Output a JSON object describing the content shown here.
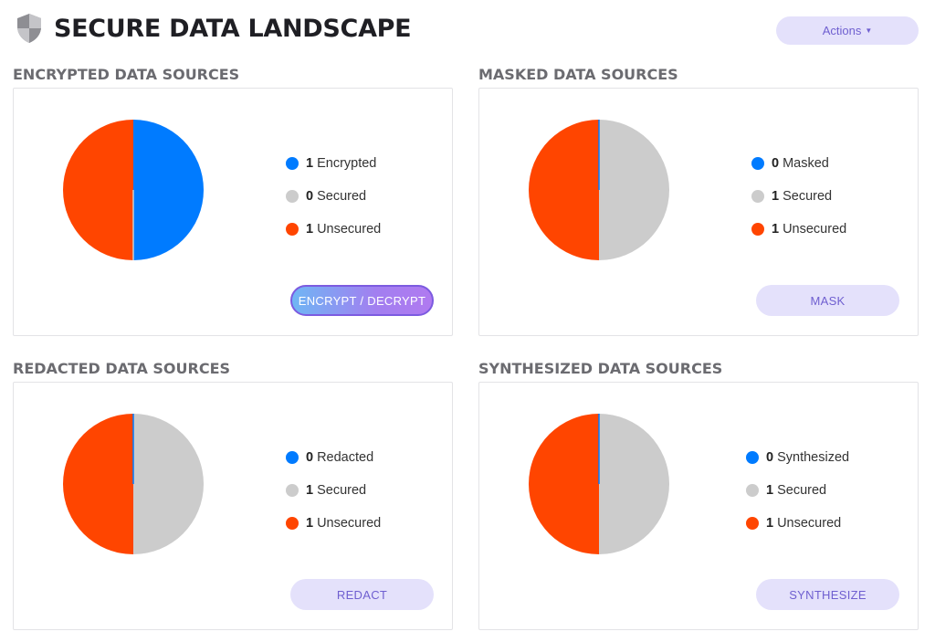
{
  "header": {
    "title": "SECURE DATA LANDSCAPE",
    "actions_label": "Actions",
    "icon": "shield-icon"
  },
  "colors": {
    "accent": "#007bff",
    "secured": "#cccccc",
    "unsecured": "#ff4500",
    "button_bg": "#e4e1fb",
    "button_text": "#6f5fd0"
  },
  "sections": {
    "encrypted": {
      "heading": "ENCRYPTED DATA SOURCES",
      "legend": [
        {
          "count": "1",
          "label": "Encrypted",
          "color": "#007bff"
        },
        {
          "count": "0",
          "label": "Secured",
          "color": "#cccccc"
        },
        {
          "count": "1",
          "label": "Unsecured",
          "color": "#ff4500"
        }
      ],
      "button": "ENCRYPT / DECRYPT"
    },
    "masked": {
      "heading": "MASKED DATA SOURCES",
      "legend": [
        {
          "count": "0",
          "label": "Masked",
          "color": "#007bff"
        },
        {
          "count": "1",
          "label": "Secured",
          "color": "#cccccc"
        },
        {
          "count": "1",
          "label": "Unsecured",
          "color": "#ff4500"
        }
      ],
      "button": "MASK"
    },
    "redacted": {
      "heading": "REDACTED DATA SOURCES",
      "legend": [
        {
          "count": "0",
          "label": "Redacted",
          "color": "#007bff"
        },
        {
          "count": "1",
          "label": "Secured",
          "color": "#cccccc"
        },
        {
          "count": "1",
          "label": "Unsecured",
          "color": "#ff4500"
        }
      ],
      "button": "REDACT"
    },
    "synthesized": {
      "heading": "SYNTHESIZED DATA SOURCES",
      "legend": [
        {
          "count": "0",
          "label": "Synthesized",
          "color": "#007bff"
        },
        {
          "count": "1",
          "label": "Secured",
          "color": "#cccccc"
        },
        {
          "count": "1",
          "label": "Unsecured",
          "color": "#ff4500"
        }
      ],
      "button": "SYNTHESIZE"
    }
  },
  "chart_data": [
    {
      "type": "pie",
      "categories": [
        "Encrypted",
        "Secured",
        "Unsecured"
      ],
      "values": [
        1,
        0,
        1
      ],
      "colors": [
        "#007bff",
        "#cccccc",
        "#ff4500"
      ]
    },
    {
      "type": "pie",
      "categories": [
        "Masked",
        "Secured",
        "Unsecured"
      ],
      "values": [
        0,
        1,
        1
      ],
      "colors": [
        "#007bff",
        "#cccccc",
        "#ff4500"
      ]
    },
    {
      "type": "pie",
      "categories": [
        "Redacted",
        "Secured",
        "Unsecured"
      ],
      "values": [
        0,
        1,
        1
      ],
      "colors": [
        "#007bff",
        "#cccccc",
        "#ff4500"
      ]
    },
    {
      "type": "pie",
      "categories": [
        "Synthesized",
        "Secured",
        "Unsecured"
      ],
      "values": [
        0,
        1,
        1
      ],
      "colors": [
        "#007bff",
        "#cccccc",
        "#ff4500"
      ]
    }
  ]
}
